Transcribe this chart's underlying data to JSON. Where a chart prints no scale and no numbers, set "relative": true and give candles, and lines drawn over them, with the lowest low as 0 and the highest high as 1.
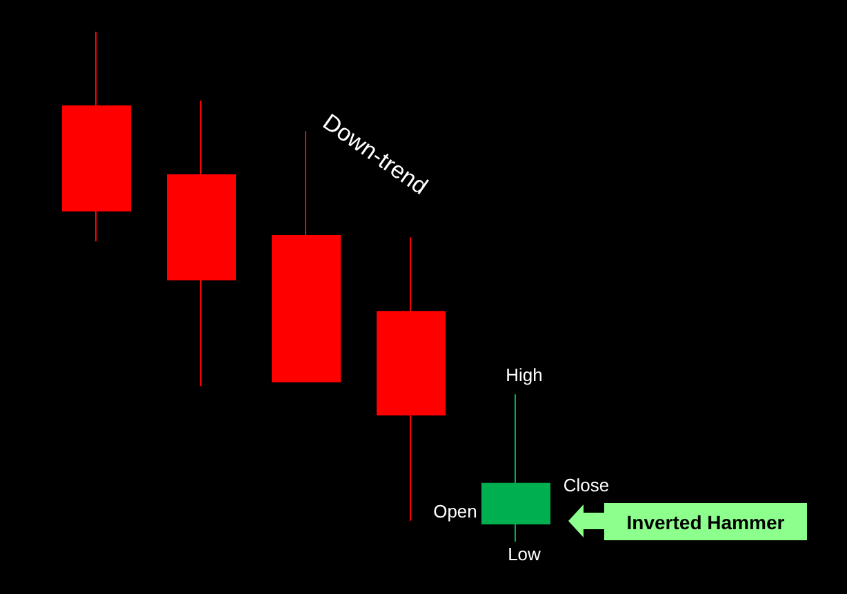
{
  "chart_data": {
    "type": "candlestick",
    "relative": true,
    "categories": [
      null,
      null,
      null,
      null,
      null
    ],
    "ohlc": [
      [
        0.854,
        1,
        0.589,
        0.649
      ],
      [
        0.719,
        0.865,
        0.305,
        0.514
      ],
      [
        0.6,
        0.805,
        0.314,
        0.314
      ],
      [
        0.451,
        0.597,
        0.041,
        0.249
      ],
      [
        0.035,
        0.289,
        0,
        0.114
      ]
    ],
    "colors": [
      "#ff0000",
      "#ff0000",
      "#ff0000",
      "#ff0000",
      "#00b050"
    ],
    "annotations": [
      "Down-trend",
      "High",
      "Open",
      "Close",
      "Low",
      "Inverted Hammer"
    ]
  }
}
